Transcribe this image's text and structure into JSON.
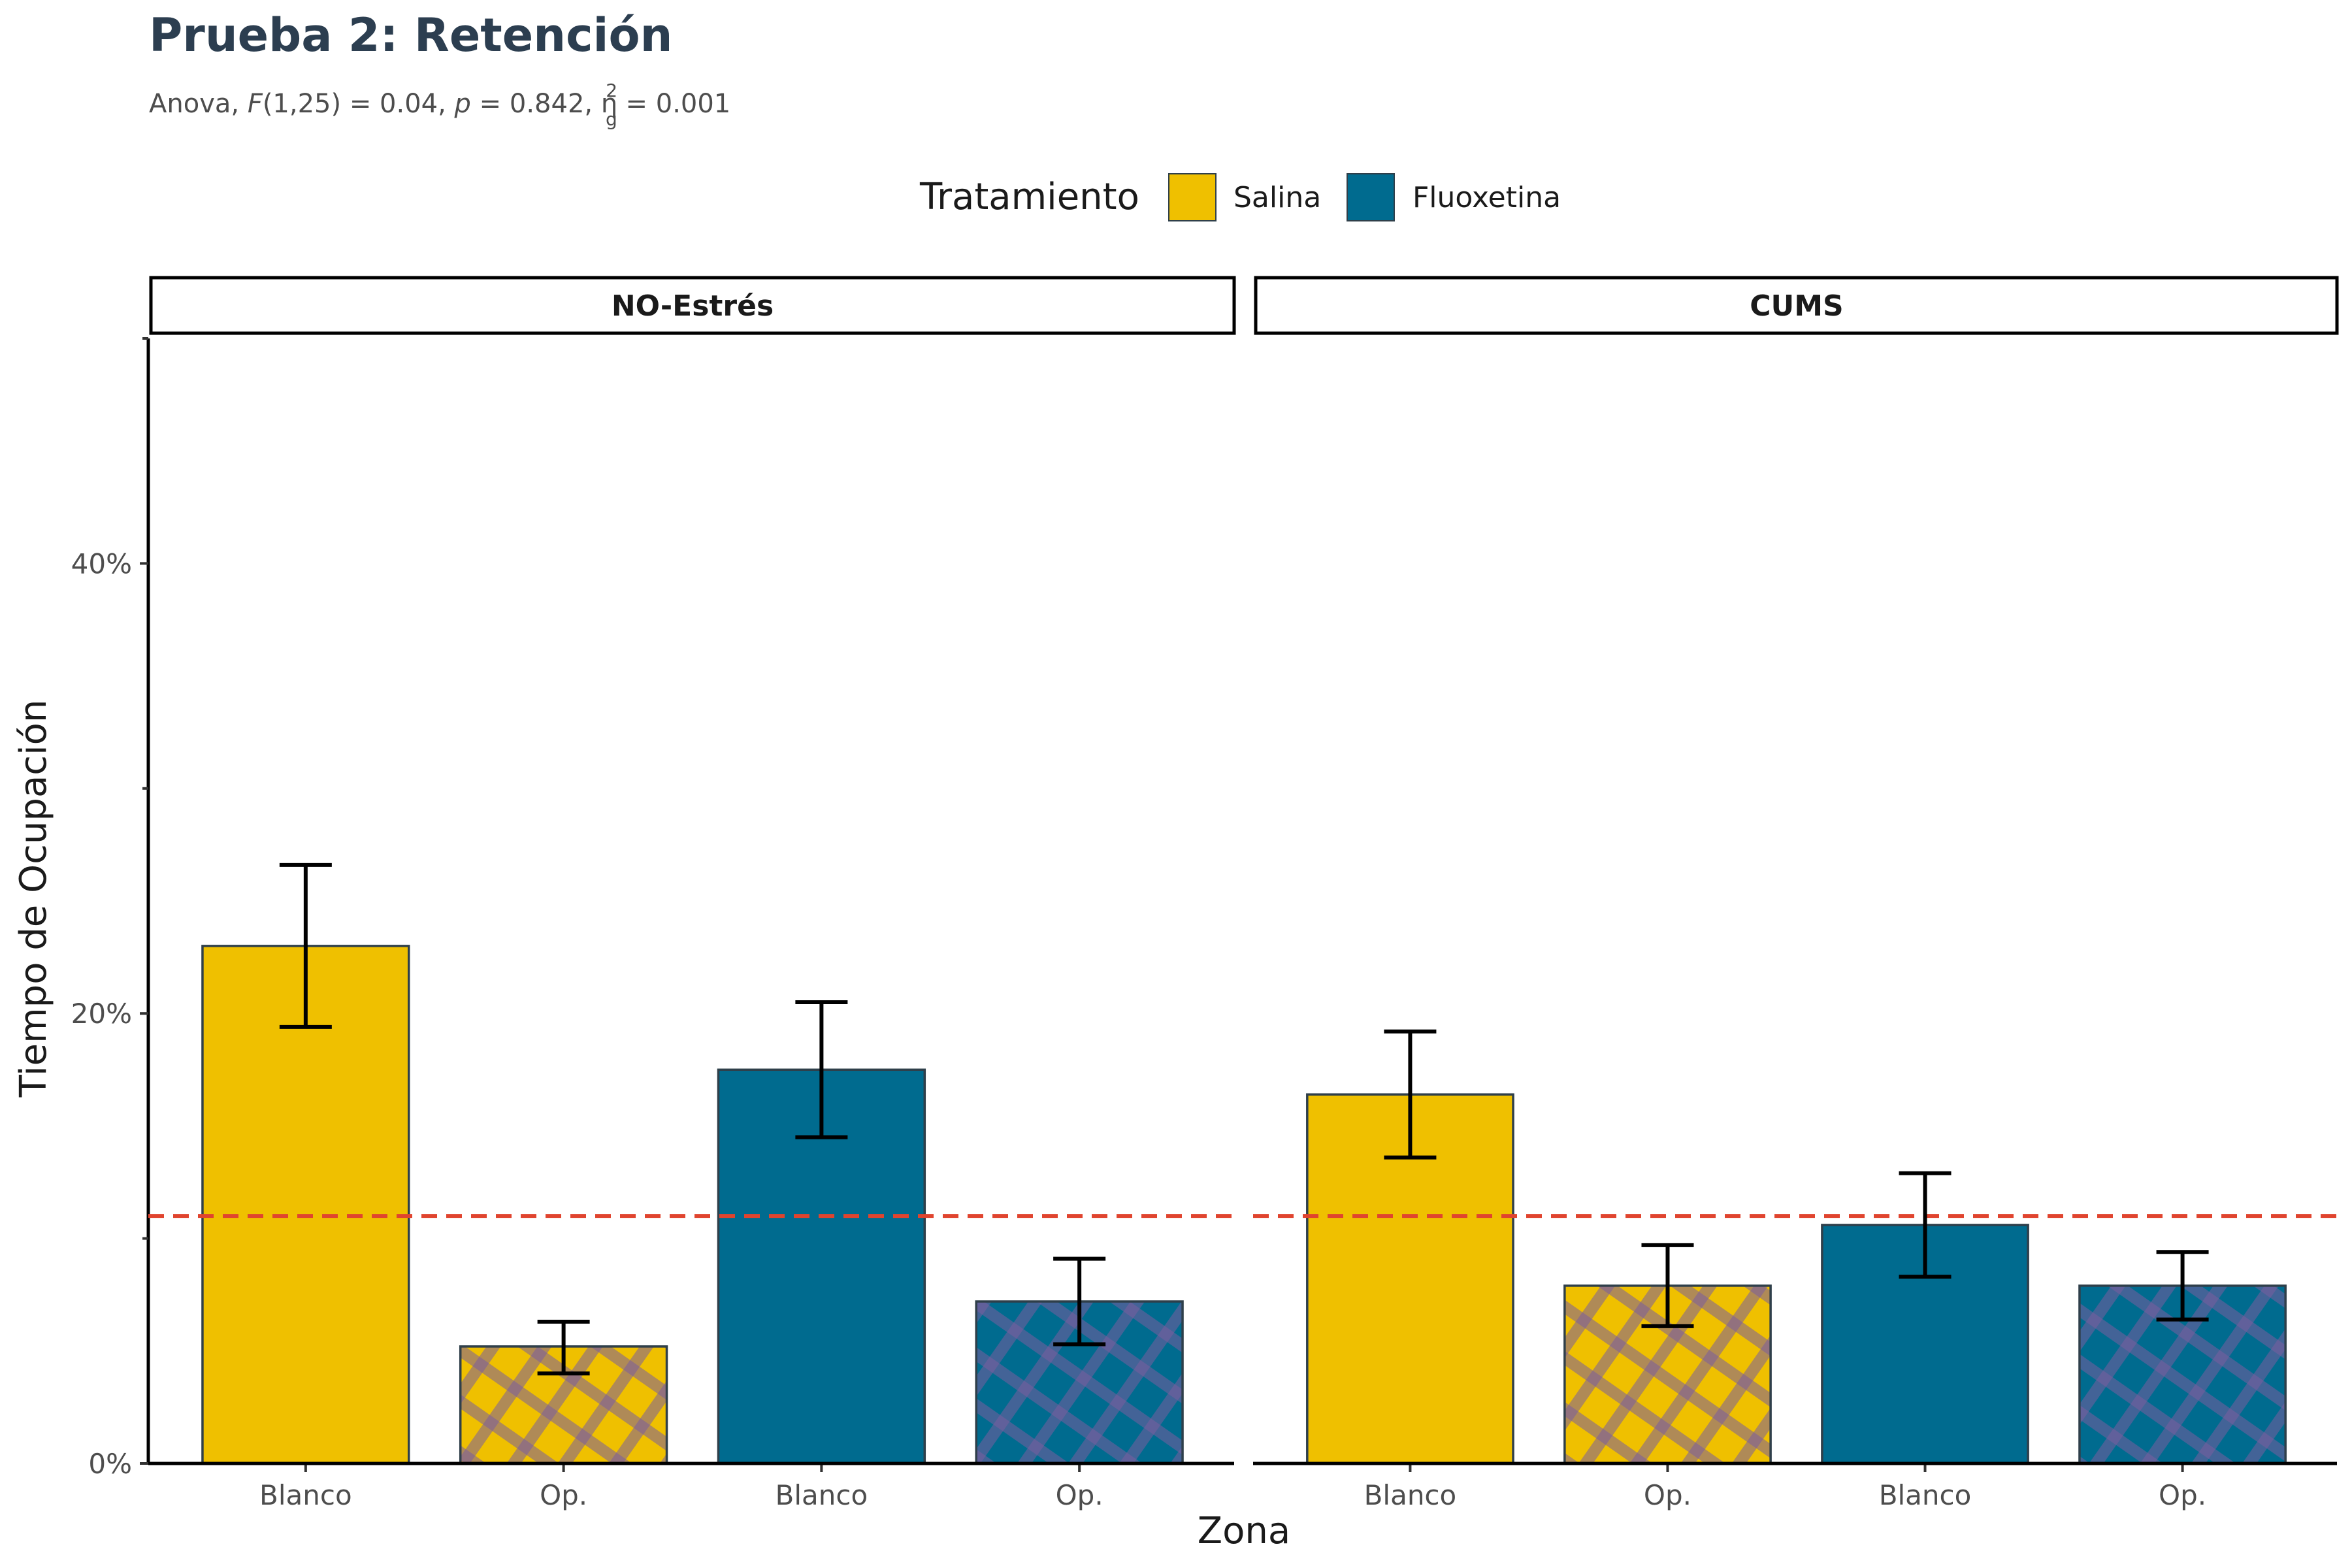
{
  "title": "Prueba 2: Retención",
  "subtitle": {
    "prefix": "Anova, ",
    "f_symbol": "F",
    "f_value": "(1,25) = 0.04, ",
    "p_symbol": "p",
    "p_value": " = 0.842, ",
    "eta_symbol": "η",
    "eta_sup": "2",
    "eta_sub": "g",
    "eta_value": " = 0.001"
  },
  "legend": {
    "title": "Tratamiento",
    "items": [
      {
        "label": "Salina",
        "color": "#EFC000"
      },
      {
        "label": "Fluoxetina",
        "color": "#006B8F"
      }
    ]
  },
  "colors": {
    "salina": "#EFC000",
    "fluoxetina": "#006B8F",
    "hatch": "#7A5C9E",
    "reference_line": "#E0442E",
    "bar_border": "#2F3F4A"
  },
  "chart_data": {
    "type": "bar",
    "xlabel": "Zona",
    "ylabel": "Tiempo de Ocupación",
    "ylim": [
      0,
      50
    ],
    "y_ticks": [
      0,
      20,
      40
    ],
    "y_tick_labels": [
      "0%",
      "20%",
      "40%"
    ],
    "y_minor_ticks": [
      10,
      30,
      50
    ],
    "reference_line": 11,
    "panels": [
      {
        "name": "NO-Estrés",
        "bars": [
          {
            "zona": "Blanco",
            "tratamiento": "Salina",
            "value": 23.0,
            "error_low": 19.4,
            "error_high": 26.6,
            "pattern": "none"
          },
          {
            "zona": "Op.",
            "tratamiento": "Salina",
            "value": 5.2,
            "error_low": 4.0,
            "error_high": 6.3,
            "pattern": "crosshatch"
          },
          {
            "zona": "Blanco",
            "tratamiento": "Fluoxetina",
            "value": 17.5,
            "error_low": 14.5,
            "error_high": 20.5,
            "pattern": "none"
          },
          {
            "zona": "Op.",
            "tratamiento": "Fluoxetina",
            "value": 7.2,
            "error_low": 5.3,
            "error_high": 9.1,
            "pattern": "crosshatch"
          }
        ]
      },
      {
        "name": "CUMS",
        "bars": [
          {
            "zona": "Blanco",
            "tratamiento": "Salina",
            "value": 16.4,
            "error_low": 13.6,
            "error_high": 19.2,
            "pattern": "none"
          },
          {
            "zona": "Op.",
            "tratamiento": "Salina",
            "value": 7.9,
            "error_low": 6.1,
            "error_high": 9.7,
            "pattern": "crosshatch"
          },
          {
            "zona": "Blanco",
            "tratamiento": "Fluoxetina",
            "value": 10.6,
            "error_low": 8.3,
            "error_high": 12.9,
            "pattern": "none"
          },
          {
            "zona": "Op.",
            "tratamiento": "Fluoxetina",
            "value": 7.9,
            "error_low": 6.4,
            "error_high": 9.4,
            "pattern": "crosshatch"
          }
        ]
      }
    ]
  }
}
